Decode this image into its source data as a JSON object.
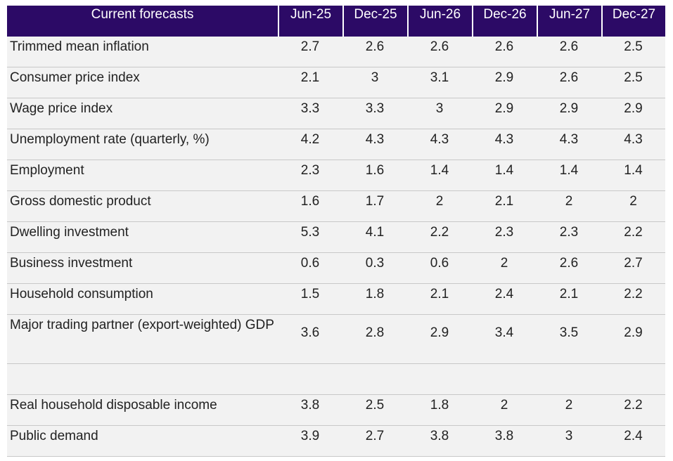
{
  "table": {
    "header": {
      "title": "Current forecasts",
      "periods": [
        "Jun-25",
        "Dec-25",
        "Jun-26",
        "Dec-26",
        "Jun-27",
        "Dec-27"
      ]
    },
    "rows": [
      {
        "label": "Trimmed mean inflation",
        "values": [
          "2.7",
          "2.6",
          "2.6",
          "2.6",
          "2.6",
          "2.5"
        ]
      },
      {
        "label": "Consumer price index",
        "values": [
          "2.1",
          "3",
          "3.1",
          "2.9",
          "2.6",
          "2.5"
        ]
      },
      {
        "label": "Wage price index",
        "values": [
          "3.3",
          "3.3",
          "3",
          "2.9",
          "2.9",
          "2.9"
        ]
      },
      {
        "label": "Unemployment rate (quarterly, %)",
        "values": [
          "4.2",
          "4.3",
          "4.3",
          "4.3",
          "4.3",
          "4.3"
        ]
      },
      {
        "label": "Employment",
        "values": [
          "2.3",
          "1.6",
          "1.4",
          "1.4",
          "1.4",
          "1.4"
        ]
      },
      {
        "label": "Gross domestic product",
        "values": [
          "1.6",
          "1.7",
          "2",
          "2.1",
          "2",
          "2"
        ]
      },
      {
        "label": "Dwelling investment",
        "values": [
          "5.3",
          "4.1",
          "2.2",
          "2.3",
          "2.3",
          "2.2"
        ]
      },
      {
        "label": "Business investment",
        "values": [
          "0.6",
          "0.3",
          "0.6",
          "2",
          "2.6",
          "2.7"
        ]
      },
      {
        "label": "Household consumption",
        "values": [
          "1.5",
          "1.8",
          "2.1",
          "2.4",
          "2.1",
          "2.2"
        ]
      },
      {
        "label": "Major trading partner (export-weighted) GDP",
        "values": [
          "3.6",
          "2.8",
          "2.9",
          "3.4",
          "3.5",
          "2.9"
        ]
      },
      {
        "label": "",
        "values": [
          "",
          "",
          "",
          "",
          "",
          ""
        ]
      },
      {
        "label": "Real household disposable income",
        "values": [
          "3.8",
          "2.5",
          "1.8",
          "2",
          "2",
          "2.2"
        ]
      },
      {
        "label": "Public demand",
        "values": [
          "3.9",
          "2.7",
          "3.8",
          "3.8",
          "3",
          "2.4"
        ]
      }
    ]
  },
  "colors": {
    "header_bg": "#2c0a66",
    "header_text": "#ffffff",
    "row_bg": "#f2f2f2",
    "row_divider": "#c8c8c8"
  }
}
